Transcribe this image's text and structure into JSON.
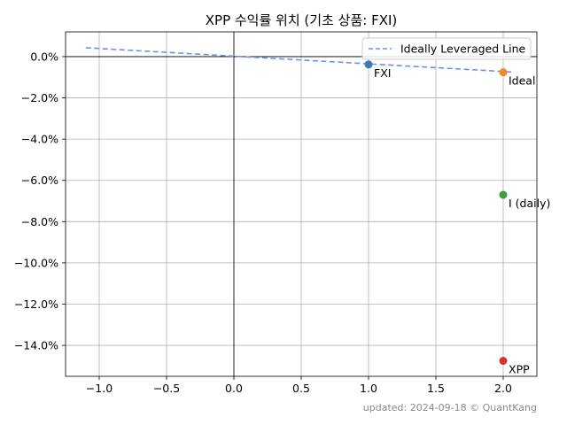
{
  "chart_data": {
    "type": "scatter",
    "title": "XPP 수익률 위치 (기초 상품: FXI)",
    "xlabel": "",
    "ylabel": "",
    "xlim": [
      -1.25,
      2.25
    ],
    "ylim": [
      -15.5,
      1.2
    ],
    "x_ticks": [
      -1.0,
      -0.5,
      0.0,
      0.5,
      1.0,
      1.5,
      2.0
    ],
    "x_tick_labels": [
      "−1.0",
      "−0.5",
      "0.0",
      "0.5",
      "1.0",
      "1.5",
      "2.0"
    ],
    "y_ticks": [
      0,
      -2,
      -4,
      -6,
      -8,
      -10,
      -12,
      -14
    ],
    "y_tick_labels": [
      "0.0%",
      "−2.0%",
      "−4.0%",
      "−6.0%",
      "−8.0%",
      "−10.0%",
      "−12.0%",
      "−14.0%"
    ],
    "grid": true,
    "legend_position": "top-right",
    "line": {
      "name": "Ideally Leveraged Line",
      "x": [
        -1.1,
        2.08
      ],
      "y": [
        0.43,
        -0.75
      ],
      "color": "#6495ED",
      "style": "dashed"
    },
    "points": [
      {
        "label": "FXI",
        "x": 1.0,
        "y": -0.38,
        "color": "#3a78b6"
      },
      {
        "label": "Ideal",
        "x": 2.0,
        "y": -0.76,
        "color": "#f0892d"
      },
      {
        "label": "I (daily)",
        "x": 2.0,
        "y": -6.7,
        "color": "#3c9e3c"
      },
      {
        "label": "XPP",
        "x": 2.0,
        "y": -14.75,
        "color": "#d03434"
      }
    ]
  },
  "footer": "updated: 2024-09-18 © QuantKang"
}
